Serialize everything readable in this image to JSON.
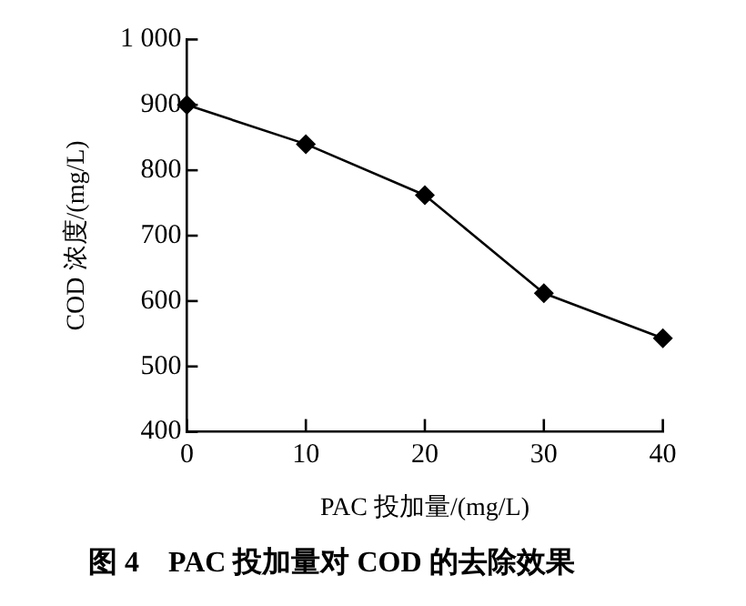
{
  "chart_data": {
    "type": "line",
    "title": "图 4　PAC 投加量对 COD 的去除效果",
    "xlabel": "PAC 投加量/(mg/L)",
    "ylabel": "COD 浓度/(mg/L)",
    "x": [
      0,
      10,
      20,
      30,
      40
    ],
    "values": [
      900,
      840,
      762,
      612,
      543
    ],
    "color": "#000000",
    "xlim": [
      0,
      40
    ],
    "xticks": [
      0,
      10,
      20,
      30,
      40
    ],
    "ylim": [
      400,
      1000
    ],
    "yticks": [
      400,
      500,
      600,
      700,
      800,
      900,
      {
        "value": 1000,
        "label": "1 000"
      }
    ],
    "marker": "diamond",
    "line_style": "solid",
    "grid": false,
    "legend": false
  }
}
